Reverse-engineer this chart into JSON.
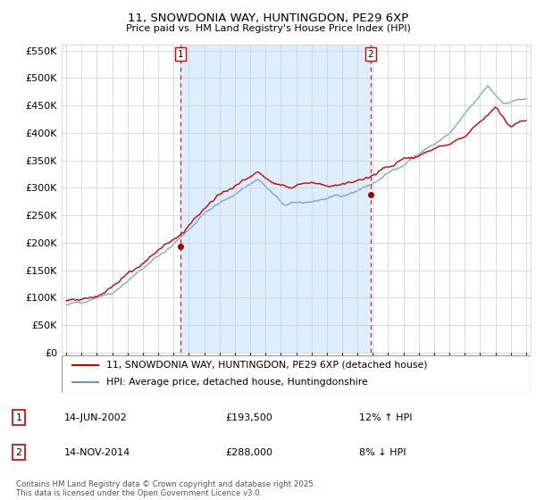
{
  "title": "11, SNOWDONIA WAY, HUNTINGDON, PE29 6XP",
  "subtitle": "Price paid vs. HM Land Registry's House Price Index (HPI)",
  "legend_line1": "11, SNOWDONIA WAY, HUNTINGDON, PE29 6XP (detached house)",
  "legend_line2": "HPI: Average price, detached house, Huntingdonshire",
  "annotation1_label": "1",
  "annotation1_date": "14-JUN-2002",
  "annotation1_price": "£193,500",
  "annotation1_hpi": "12% ↑ HPI",
  "annotation1_year": 2002.45,
  "annotation2_label": "2",
  "annotation2_date": "14-NOV-2014",
  "annotation2_price": "£288,000",
  "annotation2_hpi": "8% ↓ HPI",
  "annotation2_year": 2014.87,
  "sale1_price": 193500,
  "sale2_price": 288000,
  "ylim": [
    0,
    560000
  ],
  "yticks": [
    0,
    50000,
    100000,
    150000,
    200000,
    250000,
    300000,
    350000,
    400000,
    450000,
    500000,
    550000
  ],
  "footer": "Contains HM Land Registry data © Crown copyright and database right 2025.\nThis data is licensed under the Open Government Licence v3.0.",
  "red_color": "#cc0000",
  "blue_color": "#6699cc",
  "shade_color": "#ddeeff",
  "vline_color": "#cc0000",
  "grid_color": "#cccccc",
  "background_color": "#ffffff",
  "plot_bg": "#ffffff"
}
